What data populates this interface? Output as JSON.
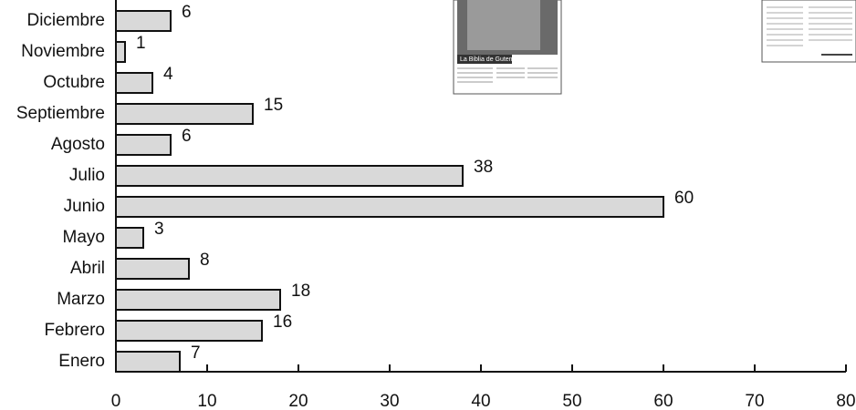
{
  "chart_data": {
    "type": "barh",
    "categories": [
      "Enero",
      "Febrero",
      "Marzo",
      "Abril",
      "Mayo",
      "Junio",
      "Julio",
      "Agosto",
      "Septiembre",
      "Octubre",
      "Noviembre",
      "Diciembre"
    ],
    "values": [
      7,
      16,
      18,
      8,
      3,
      60,
      38,
      6,
      15,
      4,
      1,
      6
    ],
    "color": "#d9d9d9",
    "xlim": [
      0,
      80
    ],
    "xticks": [
      0,
      10,
      20,
      30,
      40,
      50,
      60,
      70,
      80
    ]
  },
  "clippings": {
    "caption": "La Biblia de Gutemberg"
  }
}
